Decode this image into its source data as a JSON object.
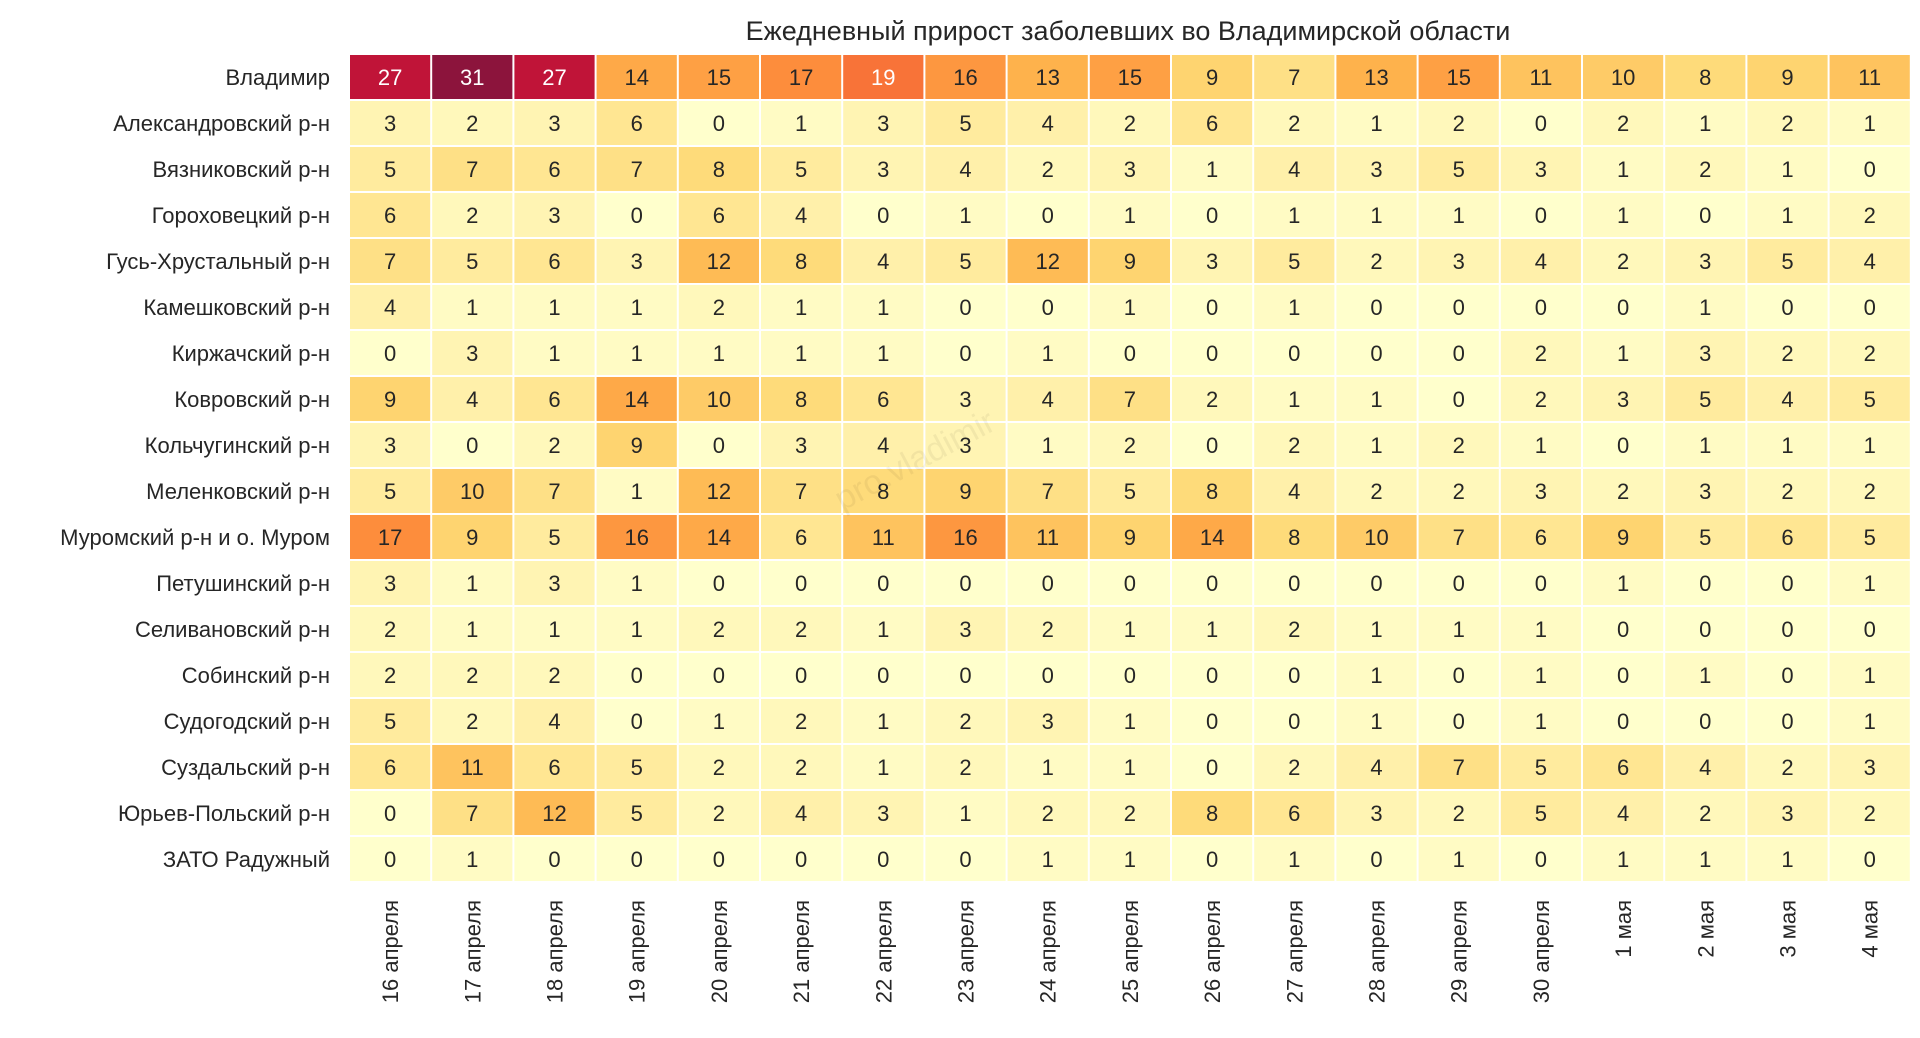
{
  "chart_data": {
    "type": "heatmap",
    "title": "Ежедневный прирост заболевших во Владимирской области",
    "watermark": "pro.vladimir",
    "colormap": "YlOrRd",
    "vmin": 0,
    "vmax": 31,
    "x_labels": [
      "16 апреля",
      "17 апреля",
      "18 апреля",
      "19 апреля",
      "20 апреля",
      "21 апреля",
      "22 апреля",
      "23 апреля",
      "24 апреля",
      "25 апреля",
      "26 апреля",
      "27 апреля",
      "28 апреля",
      "29 апреля",
      "30 апреля",
      "1 мая",
      "2 мая",
      "3 мая",
      "4 мая"
    ],
    "y_labels": [
      "Владимир",
      "Александровский р-н",
      "Вязниковский р-н",
      "Гороховецкий р-н",
      "Гусь-Хрустальный р-н",
      "Камешковский р-н",
      "Киржачский р-н",
      "Ковровский р-н",
      "Кольчугинский р-н",
      "Меленковский р-н",
      "Муромский р-н и о. Муром",
      "Петушинский р-н",
      "Селивановский р-н",
      "Собинский р-н",
      "Судогодский р-н",
      "Суздальский р-н",
      "Юрьев-Польский р-н",
      "ЗАТО Радужный"
    ],
    "values": [
      [
        27,
        31,
        27,
        14,
        15,
        17,
        19,
        16,
        13,
        15,
        9,
        7,
        13,
        15,
        11,
        10,
        8,
        9,
        11
      ],
      [
        3,
        2,
        3,
        6,
        0,
        1,
        3,
        5,
        4,
        2,
        6,
        2,
        1,
        2,
        0,
        2,
        1,
        2,
        1
      ],
      [
        5,
        7,
        6,
        7,
        8,
        5,
        3,
        4,
        2,
        3,
        1,
        4,
        3,
        5,
        3,
        1,
        2,
        1,
        0
      ],
      [
        6,
        2,
        3,
        0,
        6,
        4,
        0,
        1,
        0,
        1,
        0,
        1,
        1,
        1,
        0,
        1,
        0,
        1,
        2
      ],
      [
        7,
        5,
        6,
        3,
        12,
        8,
        4,
        5,
        12,
        9,
        3,
        5,
        2,
        3,
        4,
        2,
        3,
        5,
        4
      ],
      [
        4,
        1,
        1,
        1,
        2,
        1,
        1,
        0,
        0,
        1,
        0,
        1,
        0,
        0,
        0,
        0,
        1,
        0,
        0
      ],
      [
        0,
        3,
        1,
        1,
        1,
        1,
        1,
        0,
        1,
        0,
        0,
        0,
        0,
        0,
        2,
        1,
        3,
        2,
        2
      ],
      [
        9,
        4,
        6,
        14,
        10,
        8,
        6,
        3,
        4,
        7,
        2,
        1,
        1,
        0,
        2,
        3,
        5,
        4,
        5
      ],
      [
        3,
        0,
        2,
        9,
        0,
        3,
        4,
        3,
        1,
        2,
        0,
        2,
        1,
        2,
        1,
        0,
        1,
        1,
        1
      ],
      [
        5,
        10,
        7,
        1,
        12,
        7,
        8,
        9,
        7,
        5,
        8,
        4,
        2,
        2,
        3,
        2,
        3,
        2,
        2
      ],
      [
        17,
        9,
        5,
        16,
        14,
        6,
        11,
        16,
        11,
        9,
        14,
        8,
        10,
        7,
        6,
        9,
        5,
        6,
        5
      ],
      [
        3,
        1,
        3,
        1,
        0,
        0,
        0,
        0,
        0,
        0,
        0,
        0,
        0,
        0,
        0,
        1,
        0,
        0,
        1
      ],
      [
        2,
        1,
        1,
        1,
        2,
        2,
        1,
        3,
        2,
        1,
        1,
        2,
        1,
        1,
        1,
        0,
        0,
        0,
        0
      ],
      [
        2,
        2,
        2,
        0,
        0,
        0,
        0,
        0,
        0,
        0,
        0,
        0,
        1,
        0,
        1,
        0,
        1,
        0,
        1
      ],
      [
        5,
        2,
        4,
        0,
        1,
        2,
        1,
        2,
        3,
        1,
        0,
        0,
        1,
        0,
        1,
        0,
        0,
        0,
        1
      ],
      [
        6,
        11,
        6,
        5,
        2,
        2,
        1,
        2,
        1,
        1,
        0,
        2,
        4,
        7,
        5,
        6,
        4,
        2,
        3
      ],
      [
        0,
        7,
        12,
        5,
        2,
        4,
        3,
        1,
        2,
        2,
        8,
        6,
        3,
        2,
        5,
        4,
        2,
        3,
        2
      ],
      [
        0,
        1,
        0,
        0,
        0,
        0,
        0,
        0,
        1,
        1,
        0,
        1,
        0,
        1,
        0,
        1,
        1,
        1,
        0
      ]
    ],
    "grid": false,
    "legend": "none"
  }
}
